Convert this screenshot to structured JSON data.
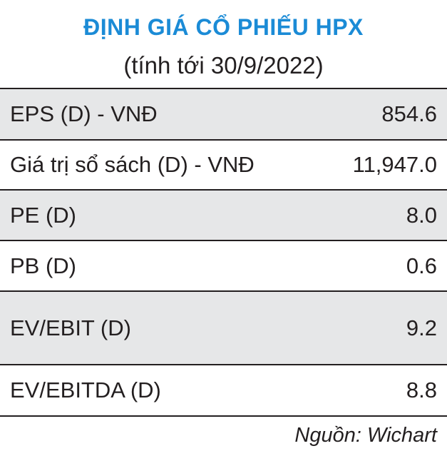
{
  "colors": {
    "title": "#1b8bd6",
    "shaded_row": "#e6e7e8",
    "text": "#231f20"
  },
  "title": "ĐỊNH GIÁ CỔ PHIẾU HPX",
  "subtitle": "(tính tới 30/9/2022)",
  "rows": [
    {
      "label": "EPS (D) - VNĐ",
      "value": "854.6",
      "shaded": true
    },
    {
      "label": "Giá trị sổ sách (D) - VNĐ",
      "value": "11,947.0",
      "shaded": false
    },
    {
      "label": "PE (D)",
      "value": "8.0",
      "shaded": true
    },
    {
      "label": "PB (D)",
      "value": "0.6",
      "shaded": false
    },
    {
      "label": "EV/EBIT (D)",
      "value": "9.2",
      "shaded": true
    },
    {
      "label": "EV/EBITDA (D)",
      "value": "8.8",
      "shaded": false
    }
  ],
  "source": "Nguồn: Wichart"
}
